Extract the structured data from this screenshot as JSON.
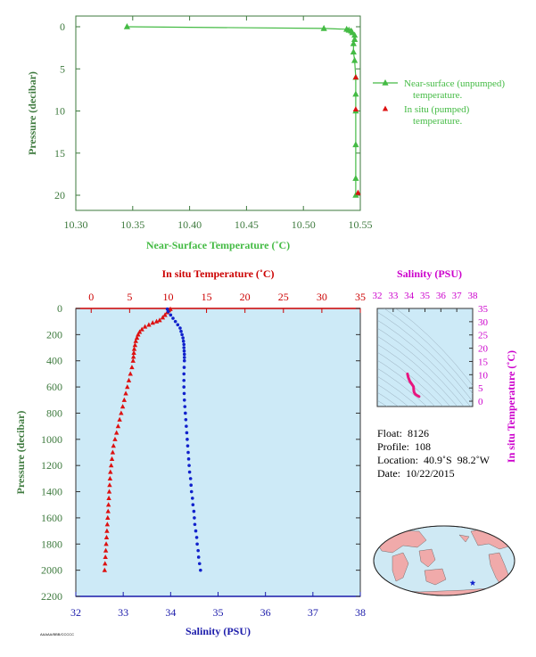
{
  "colors": {
    "axis_green": "#3e7a3e",
    "near_surface_green": "#44bb44",
    "in_situ_red": "#dd1111",
    "salinity_blue": "#1122cc",
    "temp_axis_red": "#cc0000",
    "salinity_axis_blue": "#1a1aaa",
    "ts_axis_magenta": "#cc00cc",
    "profile_bg": "#cdeaf7",
    "ts_trace": "#e8157f"
  },
  "chart_data": [
    {
      "type": "line",
      "id": "near-surface",
      "xlabel": "Near-Surface Temperature (˚C)",
      "ylabel": "Pressure (decibar)",
      "xlim": [
        10.3,
        10.55
      ],
      "ylim": [
        22,
        0
      ],
      "x_ticks": [
        "10.30",
        "10.35",
        "10.40",
        "10.45",
        "10.50",
        "10.55"
      ],
      "y_ticks": [
        "0",
        "5",
        "10",
        "15",
        "20"
      ],
      "legend_position": "right",
      "series": [
        {
          "name": "Near-surface (unpumped) temperature.",
          "marker": "triangle",
          "line": true,
          "points": [
            [
              10.345,
              0.0
            ],
            [
              10.518,
              0.2
            ],
            [
              10.538,
              0.3
            ],
            [
              10.54,
              0.4
            ],
            [
              10.542,
              0.5
            ],
            [
              10.543,
              0.7
            ],
            [
              10.545,
              1.0
            ],
            [
              10.545,
              1.5
            ],
            [
              10.544,
              2.0
            ],
            [
              10.544,
              3.0
            ],
            [
              10.545,
              4.0
            ],
            [
              10.546,
              6.0
            ],
            [
              10.546,
              8.0
            ],
            [
              10.546,
              10.0
            ],
            [
              10.546,
              14.0
            ],
            [
              10.546,
              18.0
            ],
            [
              10.546,
              20.0
            ]
          ]
        },
        {
          "name": "In situ (pumped) temperature.",
          "marker": "triangle",
          "line": false,
          "points": [
            [
              10.546,
              6.0
            ],
            [
              10.546,
              9.8
            ],
            [
              10.548,
              19.7
            ]
          ]
        }
      ]
    },
    {
      "type": "scatter",
      "id": "profile",
      "top_axis_label": "In situ Temperature (˚C)",
      "bottom_axis_label": "Salinity (PSU)",
      "ylabel": "Pressure (decibar)",
      "temperature_lim": [
        -2,
        35
      ],
      "salinity_lim": [
        32,
        38
      ],
      "pressure_lim": [
        2200,
        0
      ],
      "temperature_ticks": [
        "0",
        "5",
        "10",
        "15",
        "20",
        "25",
        "30",
        "35"
      ],
      "salinity_ticks": [
        "32",
        "33",
        "34",
        "35",
        "36",
        "37",
        "38"
      ],
      "pressure_ticks": [
        "0",
        "200",
        "400",
        "600",
        "800",
        "1000",
        "1200",
        "1400",
        "1600",
        "1800",
        "2000",
        "2200"
      ],
      "temperature": [
        [
          10.3,
          5
        ],
        [
          10.1,
          15
        ],
        [
          9.9,
          30
        ],
        [
          9.6,
          50
        ],
        [
          9.3,
          70
        ],
        [
          8.9,
          90
        ],
        [
          8.5,
          100
        ],
        [
          8.0,
          110
        ],
        [
          7.5,
          125
        ],
        [
          7.0,
          140
        ],
        [
          6.6,
          160
        ],
        [
          6.3,
          180
        ],
        [
          6.1,
          200
        ],
        [
          5.95,
          225
        ],
        [
          5.8,
          250
        ],
        [
          5.7,
          280
        ],
        [
          5.6,
          310
        ],
        [
          5.55,
          340
        ],
        [
          5.5,
          370
        ],
        [
          5.45,
          400
        ],
        [
          5.3,
          450
        ],
        [
          5.1,
          500
        ],
        [
          4.9,
          550
        ],
        [
          4.7,
          600
        ],
        [
          4.5,
          650
        ],
        [
          4.3,
          700
        ],
        [
          4.1,
          750
        ],
        [
          3.9,
          800
        ],
        [
          3.7,
          850
        ],
        [
          3.5,
          900
        ],
        [
          3.3,
          950
        ],
        [
          3.1,
          1000
        ],
        [
          2.9,
          1050
        ],
        [
          2.8,
          1100
        ],
        [
          2.7,
          1150
        ],
        [
          2.6,
          1200
        ],
        [
          2.5,
          1250
        ],
        [
          2.45,
          1300
        ],
        [
          2.4,
          1350
        ],
        [
          2.35,
          1400
        ],
        [
          2.3,
          1450
        ],
        [
          2.25,
          1500
        ],
        [
          2.2,
          1550
        ],
        [
          2.15,
          1600
        ],
        [
          2.1,
          1650
        ],
        [
          2.05,
          1700
        ],
        [
          2.0,
          1750
        ],
        [
          1.95,
          1800
        ],
        [
          1.9,
          1850
        ],
        [
          1.85,
          1900
        ],
        [
          1.8,
          1950
        ],
        [
          1.75,
          2000
        ]
      ],
      "salinity": [
        [
          33.93,
          5
        ],
        [
          33.95,
          25
        ],
        [
          34.0,
          50
        ],
        [
          34.05,
          75
        ],
        [
          34.1,
          100
        ],
        [
          34.15,
          125
        ],
        [
          34.2,
          150
        ],
        [
          34.22,
          175
        ],
        [
          34.24,
          200
        ],
        [
          34.26,
          225
        ],
        [
          34.27,
          250
        ],
        [
          34.28,
          275
        ],
        [
          34.28,
          300
        ],
        [
          34.285,
          325
        ],
        [
          34.29,
          350
        ],
        [
          34.29,
          375
        ],
        [
          34.29,
          400
        ],
        [
          34.285,
          450
        ],
        [
          34.28,
          500
        ],
        [
          34.28,
          550
        ],
        [
          34.28,
          600
        ],
        [
          34.285,
          650
        ],
        [
          34.29,
          700
        ],
        [
          34.3,
          750
        ],
        [
          34.31,
          800
        ],
        [
          34.32,
          850
        ],
        [
          34.33,
          900
        ],
        [
          34.34,
          950
        ],
        [
          34.35,
          1000
        ],
        [
          34.36,
          1050
        ],
        [
          34.37,
          1100
        ],
        [
          34.38,
          1150
        ],
        [
          34.39,
          1200
        ],
        [
          34.4,
          1250
        ],
        [
          34.42,
          1300
        ],
        [
          34.43,
          1350
        ],
        [
          34.44,
          1400
        ],
        [
          34.46,
          1450
        ],
        [
          34.47,
          1500
        ],
        [
          34.49,
          1550
        ],
        [
          34.5,
          1600
        ],
        [
          34.51,
          1650
        ],
        [
          34.53,
          1700
        ],
        [
          34.55,
          1750
        ],
        [
          34.56,
          1800
        ],
        [
          34.58,
          1850
        ],
        [
          34.59,
          1900
        ],
        [
          34.61,
          1950
        ],
        [
          34.63,
          2000
        ]
      ]
    },
    {
      "type": "line",
      "id": "ts-diagram",
      "xlabel": "Salinity (PSU)",
      "ylabel": "In situ Temperature (˚C)",
      "xlim": [
        32,
        38
      ],
      "ylim": [
        -2,
        35
      ],
      "x_ticks": [
        "32",
        "33",
        "34",
        "35",
        "36",
        "37",
        "38"
      ],
      "y_ticks": [
        "0",
        "5",
        "10",
        "15",
        "20",
        "25",
        "30",
        "35"
      ],
      "points": [
        [
          33.9,
          10.3
        ],
        [
          33.95,
          9.0
        ],
        [
          34.05,
          7.5
        ],
        [
          34.2,
          6.2
        ],
        [
          34.28,
          5.5
        ],
        [
          34.29,
          4.5
        ],
        [
          34.31,
          3.5
        ],
        [
          34.35,
          3.0
        ],
        [
          34.42,
          2.5
        ],
        [
          34.5,
          2.2
        ],
        [
          34.63,
          1.75
        ]
      ]
    }
  ],
  "float_info": {
    "float": "Float:  8126",
    "profile": "Profile:  108",
    "location": "Location:  40.9˚S  98.2˚W",
    "date": "Date:  10/22/2015"
  },
  "map": {
    "marker_label": "float-location"
  },
  "footer": {
    "id": "AAAAA/BBB/CCCCC"
  }
}
